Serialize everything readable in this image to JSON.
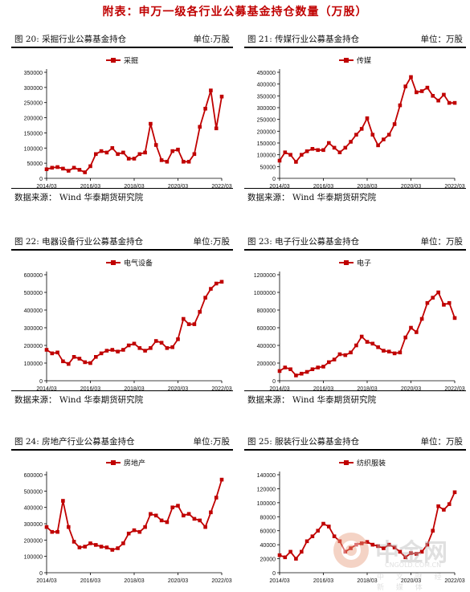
{
  "page": {
    "title": "附表：申万一级各行业公募基金持仓数量（万股）"
  },
  "panels": [
    {
      "label": "图 20:   采掘行业公募基金持仓",
      "unit": "单位:万股",
      "source": "数据来源：  Wind  华泰期货研究院"
    },
    {
      "label": "图 21:   传媒行业公募基金持仓",
      "unit": "单位：万股",
      "source": "数据来源：  Wind  华泰期货研究院"
    },
    {
      "label": "图 22:   电器设备行业公募基金持仓",
      "unit": "单位:万股",
      "source": "数据来源：  Wind  华泰期货研究院"
    },
    {
      "label": "图 23:   电子行业公募基金持仓",
      "unit": "单位：万股",
      "source": "数据来源：  Wind  华泰期货研究院"
    },
    {
      "label": "图 24:   房地产行业公募基金持仓",
      "unit": "单位:万股",
      "source": ""
    },
    {
      "label": "图 25:   服装行业公募基金持仓",
      "unit": "单位：万股",
      "source": ""
    }
  ],
  "watermark": {
    "brand": "中金网",
    "domain": "CNGOLD.COM.CN",
    "tagline": "中 文 财 经 新 媒 体"
  },
  "chart_data": [
    {
      "type": "line",
      "legend": "采掘",
      "color": "#c00000",
      "x": [
        "2014/03",
        "2014/06",
        "2014/09",
        "2014/12",
        "2015/03",
        "2015/06",
        "2015/09",
        "2015/12",
        "2016/03",
        "2016/06",
        "2016/09",
        "2016/12",
        "2017/03",
        "2017/06",
        "2017/09",
        "2017/12",
        "2018/03",
        "2018/06",
        "2018/09",
        "2018/12",
        "2019/03",
        "2019/06",
        "2019/09",
        "2019/12",
        "2020/03",
        "2020/06",
        "2020/09",
        "2020/12",
        "2021/03",
        "2021/06",
        "2021/09",
        "2021/12",
        "2022/03"
      ],
      "values": [
        30000,
        35000,
        37000,
        32000,
        25000,
        35000,
        28000,
        20000,
        40000,
        80000,
        90000,
        85000,
        100000,
        80000,
        85000,
        65000,
        65000,
        80000,
        85000,
        180000,
        110000,
        60000,
        55000,
        90000,
        95000,
        55000,
        55000,
        80000,
        170000,
        230000,
        290000,
        165000,
        270000
      ],
      "xticks": [
        "2014/03",
        "2016/03",
        "2018/03",
        "2020/03",
        "2022/03"
      ],
      "ylim": [
        0,
        350000
      ],
      "yticks": [
        0,
        50000,
        100000,
        150000,
        200000,
        250000,
        300000,
        350000
      ]
    },
    {
      "type": "line",
      "legend": "传媒",
      "color": "#c00000",
      "x": [
        "2014/03",
        "2014/06",
        "2014/09",
        "2014/12",
        "2015/03",
        "2015/06",
        "2015/09",
        "2015/12",
        "2016/03",
        "2016/06",
        "2016/09",
        "2016/12",
        "2017/03",
        "2017/06",
        "2017/09",
        "2017/12",
        "2018/03",
        "2018/06",
        "2018/09",
        "2018/12",
        "2019/03",
        "2019/06",
        "2019/09",
        "2019/12",
        "2020/03",
        "2020/06",
        "2020/09",
        "2020/12",
        "2021/03",
        "2021/06",
        "2021/09",
        "2021/12",
        "2022/03"
      ],
      "values": [
        75000,
        110000,
        100000,
        70000,
        100000,
        115000,
        125000,
        120000,
        120000,
        150000,
        130000,
        110000,
        130000,
        155000,
        185000,
        210000,
        255000,
        185000,
        140000,
        165000,
        185000,
        230000,
        310000,
        390000,
        430000,
        365000,
        370000,
        385000,
        350000,
        330000,
        355000,
        320000,
        320000
      ],
      "xticks": [
        "2014/03",
        "2016/03",
        "2018/03",
        "2020/03",
        "2022/03"
      ],
      "ylim": [
        0,
        450000
      ],
      "yticks": [
        0,
        50000,
        100000,
        150000,
        200000,
        250000,
        300000,
        350000,
        400000,
        450000
      ]
    },
    {
      "type": "line",
      "legend": "电气设备",
      "color": "#c00000",
      "x": [
        "2014/03",
        "2014/06",
        "2014/09",
        "2014/12",
        "2015/03",
        "2015/06",
        "2015/09",
        "2015/12",
        "2016/03",
        "2016/06",
        "2016/09",
        "2016/12",
        "2017/03",
        "2017/06",
        "2017/09",
        "2017/12",
        "2018/03",
        "2018/06",
        "2018/09",
        "2018/12",
        "2019/03",
        "2019/06",
        "2019/09",
        "2019/12",
        "2020/03",
        "2020/06",
        "2020/09",
        "2020/12",
        "2021/03",
        "2021/06",
        "2021/09",
        "2021/12",
        "2022/03"
      ],
      "values": [
        175000,
        155000,
        160000,
        110000,
        95000,
        135000,
        125000,
        105000,
        100000,
        135000,
        155000,
        170000,
        175000,
        165000,
        175000,
        200000,
        210000,
        185000,
        170000,
        185000,
        225000,
        215000,
        185000,
        190000,
        235000,
        350000,
        320000,
        320000,
        390000,
        470000,
        520000,
        550000,
        560000
      ],
      "xticks": [
        "2014/03",
        "2016/03",
        "2018/03",
        "2020/03",
        "2022/03"
      ],
      "ylim": [
        0,
        600000
      ],
      "yticks": [
        0,
        100000,
        200000,
        300000,
        400000,
        500000,
        600000
      ]
    },
    {
      "type": "line",
      "legend": "电子",
      "color": "#c00000",
      "x": [
        "2014/03",
        "2014/06",
        "2014/09",
        "2014/12",
        "2015/03",
        "2015/06",
        "2015/09",
        "2015/12",
        "2016/03",
        "2016/06",
        "2016/09",
        "2016/12",
        "2017/03",
        "2017/06",
        "2017/09",
        "2017/12",
        "2018/03",
        "2018/06",
        "2018/09",
        "2018/12",
        "2019/03",
        "2019/06",
        "2019/09",
        "2019/12",
        "2020/03",
        "2020/06",
        "2020/09",
        "2020/12",
        "2021/03",
        "2021/06",
        "2021/09",
        "2021/12",
        "2022/03"
      ],
      "values": [
        110000,
        150000,
        130000,
        60000,
        80000,
        100000,
        130000,
        150000,
        160000,
        210000,
        240000,
        300000,
        290000,
        320000,
        400000,
        500000,
        440000,
        420000,
        380000,
        340000,
        330000,
        310000,
        320000,
        490000,
        600000,
        550000,
        700000,
        880000,
        940000,
        1000000,
        860000,
        880000,
        710000
      ],
      "xticks": [
        "2014/03",
        "2016/03",
        "2018/03",
        "2020/03",
        "2022/03"
      ],
      "ylim": [
        0,
        1200000
      ],
      "yticks": [
        0,
        200000,
        400000,
        600000,
        800000,
        1000000,
        1200000
      ]
    },
    {
      "type": "line",
      "legend": "房地产",
      "color": "#c00000",
      "x": [
        "2014/03",
        "2014/06",
        "2014/09",
        "2014/12",
        "2015/03",
        "2015/06",
        "2015/09",
        "2015/12",
        "2016/03",
        "2016/06",
        "2016/09",
        "2016/12",
        "2017/03",
        "2017/06",
        "2017/09",
        "2017/12",
        "2018/03",
        "2018/06",
        "2018/09",
        "2018/12",
        "2019/03",
        "2019/06",
        "2019/09",
        "2019/12",
        "2020/03",
        "2020/06",
        "2020/09",
        "2020/12",
        "2021/03",
        "2021/06",
        "2021/09",
        "2021/12",
        "2022/03"
      ],
      "values": [
        280000,
        250000,
        250000,
        440000,
        280000,
        190000,
        155000,
        160000,
        180000,
        170000,
        160000,
        155000,
        140000,
        150000,
        180000,
        240000,
        260000,
        250000,
        280000,
        360000,
        350000,
        320000,
        310000,
        400000,
        410000,
        350000,
        360000,
        330000,
        320000,
        280000,
        370000,
        460000,
        570000
      ],
      "xticks": [
        "2014/03",
        "2016/03",
        "2018/03",
        "2020/03",
        "2022/03"
      ],
      "ylim": [
        0,
        600000
      ],
      "yticks": [
        0,
        100000,
        200000,
        300000,
        400000,
        500000,
        600000
      ]
    },
    {
      "type": "line",
      "legend": "纺织服装",
      "color": "#c00000",
      "x": [
        "2014/03",
        "2014/06",
        "2014/09",
        "2014/12",
        "2015/03",
        "2015/06",
        "2015/09",
        "2015/12",
        "2016/03",
        "2016/06",
        "2016/09",
        "2016/12",
        "2017/03",
        "2017/06",
        "2017/09",
        "2017/12",
        "2018/03",
        "2018/06",
        "2018/09",
        "2018/12",
        "2019/03",
        "2019/06",
        "2019/09",
        "2019/12",
        "2020/03",
        "2020/06",
        "2020/09",
        "2020/12",
        "2021/03",
        "2021/06",
        "2021/09",
        "2021/12",
        "2022/03"
      ],
      "values": [
        25000,
        22000,
        30000,
        20000,
        30000,
        45000,
        52000,
        60000,
        70000,
        66000,
        52000,
        45000,
        30000,
        35000,
        40000,
        42000,
        44000,
        40000,
        38000,
        35000,
        40000,
        36000,
        30000,
        22000,
        28000,
        27000,
        30000,
        40000,
        60000,
        95000,
        90000,
        98000,
        115000
      ],
      "xticks": [
        "2014/03",
        "2016/03",
        "2018/03",
        "2020/03",
        "2022/03"
      ],
      "ylim": [
        0,
        140000
      ],
      "yticks": [
        0,
        20000,
        40000,
        60000,
        80000,
        100000,
        120000,
        140000
      ]
    }
  ]
}
